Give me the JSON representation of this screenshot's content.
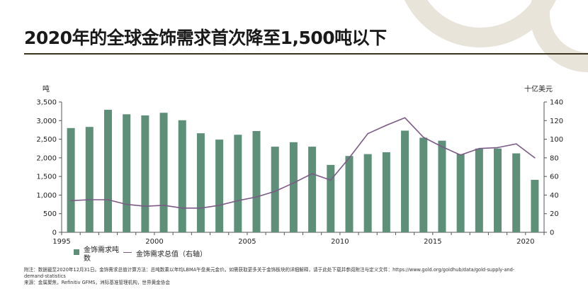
{
  "title": "2020年的全球金饰需求首次降至1,500吨以下",
  "chart_data": {
    "type": "bar",
    "title": "",
    "left_unit": "吨",
    "right_unit": "十亿美元",
    "x": [
      1995,
      1996,
      1997,
      1998,
      1999,
      2000,
      2001,
      2002,
      2003,
      2004,
      2005,
      2006,
      2007,
      2008,
      2009,
      2010,
      2011,
      2012,
      2013,
      2014,
      2015,
      2016,
      2017,
      2018,
      2019,
      2020
    ],
    "x_tick_labels": [
      "1995",
      "2000",
      "2005",
      "2010",
      "2015",
      "2020"
    ],
    "x_tick_years": [
      1995,
      2000,
      2005,
      2010,
      2015,
      2020
    ],
    "y_left_ticks": [
      "0",
      "500",
      "1,000",
      "1,500",
      "2,000",
      "2,500",
      "3,000",
      "3,500"
    ],
    "y_right_ticks": [
      "0",
      "20",
      "40",
      "60",
      "80",
      "100",
      "120",
      "140"
    ],
    "ylim_left": [
      0,
      3500
    ],
    "ylim_right": [
      0,
      140
    ],
    "series": [
      {
        "name": "金饰需求吨数",
        "axis": "left",
        "type": "bar",
        "color": "#5d8f79",
        "values": [
          2800,
          2830,
          3290,
          3170,
          3140,
          3210,
          3010,
          2660,
          2490,
          2620,
          2720,
          2300,
          2420,
          2300,
          1810,
          2050,
          2100,
          2150,
          2730,
          2540,
          2460,
          2100,
          2250,
          2250,
          2120,
          1410
        ]
      },
      {
        "name": "金饰需求总值（右轴）",
        "axis": "right",
        "type": "line",
        "color": "#7b5a86",
        "values": [
          34,
          35,
          35,
          30,
          28,
          29,
          26,
          26,
          29,
          34,
          38,
          44,
          53,
          63,
          56,
          80,
          106,
          115,
          123,
          102,
          92,
          83,
          90,
          91,
          95,
          80
        ]
      }
    ],
    "grid": false,
    "legend_position": "bottom-left"
  },
  "legend": {
    "bar_label": "金饰需求吨数",
    "line_label": "金饰需求总值（右轴）"
  },
  "notes": {
    "line1": "附注：数据截至2020年12月31日。金饰需求总值计算方法：总吨数乘以年均LBMA午盘美元金价。如需获取更多关于金饰板块的详细解释，请于此处下载并参阅附注与定义文件：https://www.gold.org/goldhub/data/gold-supply-and-",
    "line2": "demand-statistics",
    "line3": "来源：金属聚焦，Refinitiv GFMS，洲际基准管理机构，世界黄金协会"
  },
  "colors": {
    "bar": "#5d8f79",
    "line": "#7b5a86",
    "accent_decoration": "#e9e4da",
    "title_rule": "#3c3320"
  }
}
